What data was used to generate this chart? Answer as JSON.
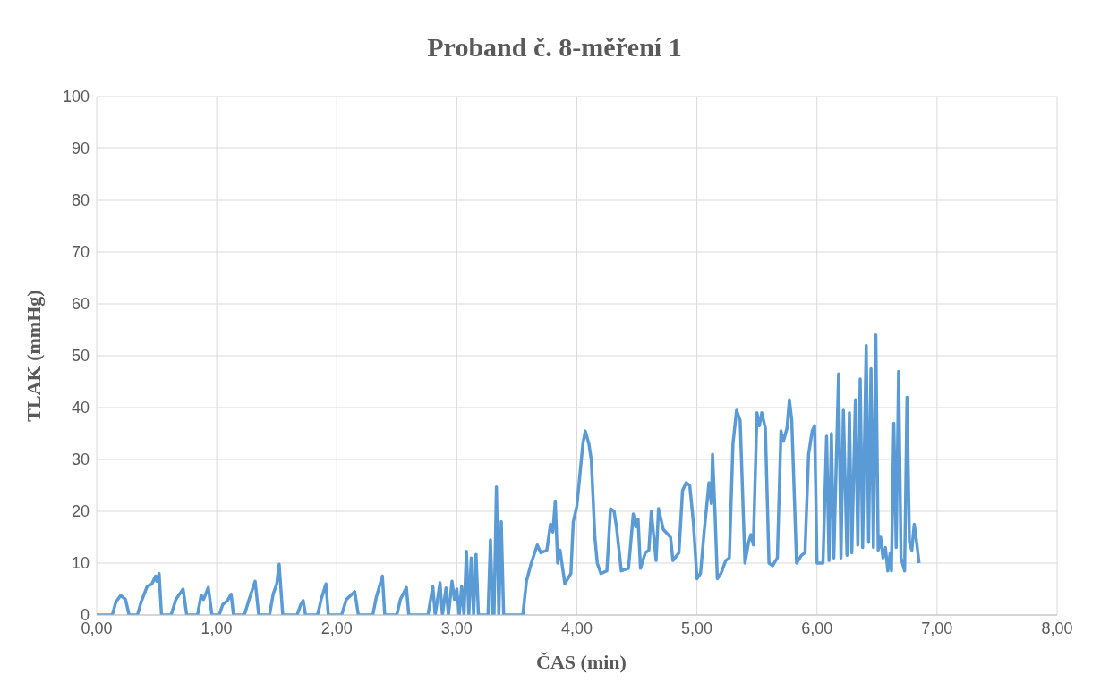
{
  "chart_data": {
    "type": "line",
    "title": "Proband č. 8-měření 1",
    "xlabel": "ČAS (min)",
    "ylabel": "TLAK (mmHg)",
    "x": [
      0,
      0.13,
      0.16,
      0.2,
      0.24,
      0.27,
      0.34,
      0.37,
      0.42,
      0.46,
      0.49,
      0.5,
      0.52,
      0.54,
      0.62,
      0.66,
      0.72,
      0.75,
      0.84,
      0.87,
      0.89,
      0.93,
      0.96,
      1.02,
      1.05,
      1.09,
      1.12,
      1.14,
      1.23,
      1.27,
      1.32,
      1.35,
      1.44,
      1.47,
      1.5,
      1.52,
      1.55,
      1.67,
      1.7,
      1.72,
      1.74,
      1.84,
      1.87,
      1.91,
      1.93,
      2.04,
      2.08,
      2.15,
      2.18,
      2.3,
      2.33,
      2.38,
      2.4,
      2.5,
      2.53,
      2.58,
      2.6,
      2.76,
      2.8,
      2.82,
      2.86,
      2.88,
      2.91,
      2.93,
      2.96,
      2.98,
      3.0,
      3.02,
      3.04,
      3.06,
      3.08,
      3.1,
      3.12,
      3.14,
      3.16,
      3.18,
      3.26,
      3.28,
      3.3,
      3.31,
      3.33,
      3.35,
      3.37,
      3.39,
      3.55,
      3.58,
      3.62,
      3.67,
      3.7,
      3.75,
      3.78,
      3.8,
      3.82,
      3.84,
      3.86,
      3.9,
      3.95,
      3.97,
      4.0,
      4.05,
      4.07,
      4.1,
      4.12,
      4.15,
      4.17,
      4.2,
      4.25,
      4.28,
      4.31,
      4.33,
      4.37,
      4.43,
      4.47,
      4.49,
      4.51,
      4.53,
      4.57,
      4.6,
      4.62,
      4.66,
      4.68,
      4.72,
      4.78,
      4.8,
      4.85,
      4.88,
      4.91,
      4.94,
      4.97,
      5.0,
      5.03,
      5.06,
      5.1,
      5.12,
      5.13,
      5.15,
      5.17,
      5.2,
      5.24,
      5.27,
      5.3,
      5.33,
      5.36,
      5.4,
      5.43,
      5.45,
      5.47,
      5.5,
      5.52,
      5.54,
      5.57,
      5.6,
      5.63,
      5.67,
      5.7,
      5.72,
      5.75,
      5.77,
      5.79,
      5.83,
      5.87,
      5.9,
      5.93,
      5.96,
      5.98,
      6.0,
      6.05,
      6.08,
      6.1,
      6.12,
      6.14,
      6.18,
      6.2,
      6.22,
      6.25,
      6.27,
      6.29,
      6.32,
      6.34,
      6.36,
      6.38,
      6.41,
      6.43,
      6.45,
      6.47,
      6.49,
      6.51,
      6.53,
      6.55,
      6.57,
      6.59,
      6.61,
      6.62,
      6.64,
      6.66,
      6.68,
      6.7,
      6.73,
      6.75,
      6.77,
      6.79,
      6.81,
      6.83,
      6.85
    ],
    "series": [
      {
        "color": "#5b9bd5",
        "values": [
          0,
          0,
          2.5,
          3.8,
          3,
          0,
          0,
          2.5,
          5.5,
          6,
          7.5,
          6.5,
          8,
          0,
          0,
          3,
          5,
          0,
          0,
          3.8,
          3,
          5.3,
          0,
          0,
          2,
          2.8,
          4,
          0,
          0,
          3,
          6.5,
          0,
          0,
          4,
          6,
          9.8,
          0,
          0,
          2,
          2.8,
          0,
          0,
          3,
          6,
          0,
          0,
          3,
          4.5,
          0,
          0,
          3.5,
          7.5,
          0,
          0,
          3,
          5.3,
          0,
          0,
          5.5,
          0,
          6.2,
          0,
          5.2,
          0,
          6.5,
          3,
          5,
          0,
          5.5,
          0,
          12.3,
          0,
          11,
          0,
          11.7,
          0,
          0,
          14.5,
          0,
          0,
          24.7,
          0,
          18,
          0,
          0,
          6.5,
          10,
          13.5,
          12,
          12.5,
          17.5,
          16,
          22,
          10,
          12.5,
          6,
          8,
          18,
          21,
          33,
          35.5,
          33,
          30,
          15,
          10,
          8,
          8.5,
          20.5,
          20,
          17,
          8.5,
          9,
          19.5,
          17,
          18.5,
          9,
          12,
          12.5,
          20,
          10.5,
          20.5,
          16.5,
          15,
          10.5,
          12,
          24,
          25.5,
          25,
          18,
          7,
          8,
          16,
          25.5,
          21.5,
          31,
          20,
          7,
          8,
          10.5,
          11,
          33,
          39.5,
          37.5,
          10,
          14,
          15.5,
          13.5,
          39,
          36.5,
          39,
          36,
          10,
          9.5,
          11,
          35.5,
          33.5,
          36,
          41.5,
          37.5,
          10,
          11.5,
          12,
          31,
          35.5,
          36.5,
          10,
          10,
          34.5,
          10.5,
          35,
          11,
          46.5,
          11,
          39.5,
          11.5,
          39,
          12,
          41.5,
          13.5,
          45.5,
          13,
          52,
          14,
          47.5,
          13,
          54,
          12.5,
          15,
          11,
          13,
          8.5,
          12,
          8.5,
          37,
          13,
          47,
          11,
          8.5,
          42,
          14,
          12.5,
          17.5,
          14,
          10
        ]
      }
    ],
    "xlim": [
      0,
      8
    ],
    "xticks": [
      {
        "value": 0,
        "label": "0,00"
      },
      {
        "value": 1,
        "label": "1,00"
      },
      {
        "value": 2,
        "label": "2,00"
      },
      {
        "value": 3,
        "label": "3,00"
      },
      {
        "value": 4,
        "label": "4,00"
      },
      {
        "value": 5,
        "label": "5,00"
      },
      {
        "value": 6,
        "label": "6,00"
      },
      {
        "value": 7,
        "label": "7,00"
      },
      {
        "value": 8,
        "label": "8,00"
      }
    ],
    "ylim": [
      0,
      100
    ],
    "yticks": [
      0,
      10,
      20,
      30,
      40,
      50,
      60,
      70,
      80,
      90,
      100
    ],
    "grid": true,
    "marker": "none",
    "line_style": "solid"
  }
}
